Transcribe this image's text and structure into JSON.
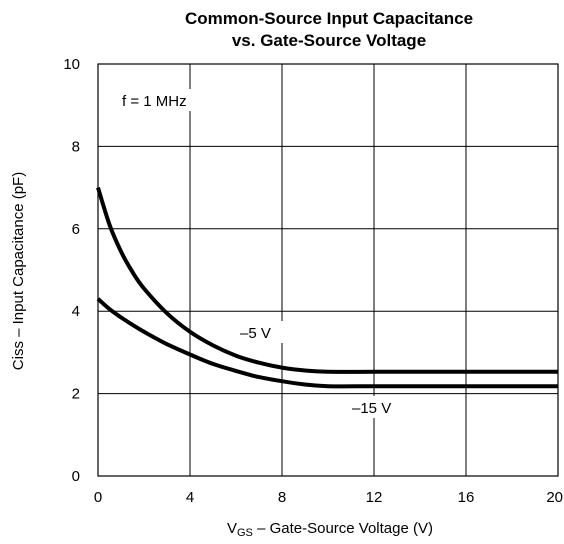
{
  "chart_data": {
    "type": "line",
    "title": "Common-Source Input Capacitance",
    "subtitle": "vs. Gate-Source Voltage",
    "xlabel_main": "V",
    "xlabel_sub": "GS",
    "xlabel_rest": " – Gate-Source Voltage (V)",
    "ylabel": "Ciss – Input Capacitance (pF)",
    "xlim": [
      0,
      20
    ],
    "ylim": [
      0,
      10
    ],
    "xticks": [
      "0",
      "4",
      "8",
      "12",
      "16",
      "20"
    ],
    "yticks": [
      "0",
      "2",
      "4",
      "6",
      "8",
      "10"
    ],
    "grid": true,
    "annotation": "f = 1 MHz",
    "series": [
      {
        "name": "–5 V",
        "x": [
          0,
          0.5,
          1,
          1.5,
          2,
          3,
          4,
          5,
          6,
          7,
          8,
          9,
          10,
          12,
          14,
          16,
          18,
          20
        ],
        "y": [
          7.0,
          6.1,
          5.45,
          4.95,
          4.55,
          3.95,
          3.5,
          3.17,
          2.92,
          2.75,
          2.63,
          2.56,
          2.53,
          2.53,
          2.53,
          2.53,
          2.53,
          2.53
        ]
      },
      {
        "name": "–15 V",
        "x": [
          0,
          0.5,
          1,
          1.5,
          2,
          3,
          4,
          5,
          6,
          7,
          8,
          9,
          10,
          12,
          14,
          16,
          18,
          20
        ],
        "y": [
          4.3,
          4.05,
          3.85,
          3.67,
          3.5,
          3.2,
          2.95,
          2.72,
          2.55,
          2.4,
          2.3,
          2.22,
          2.18,
          2.18,
          2.18,
          2.18,
          2.18,
          2.18
        ]
      }
    ]
  }
}
